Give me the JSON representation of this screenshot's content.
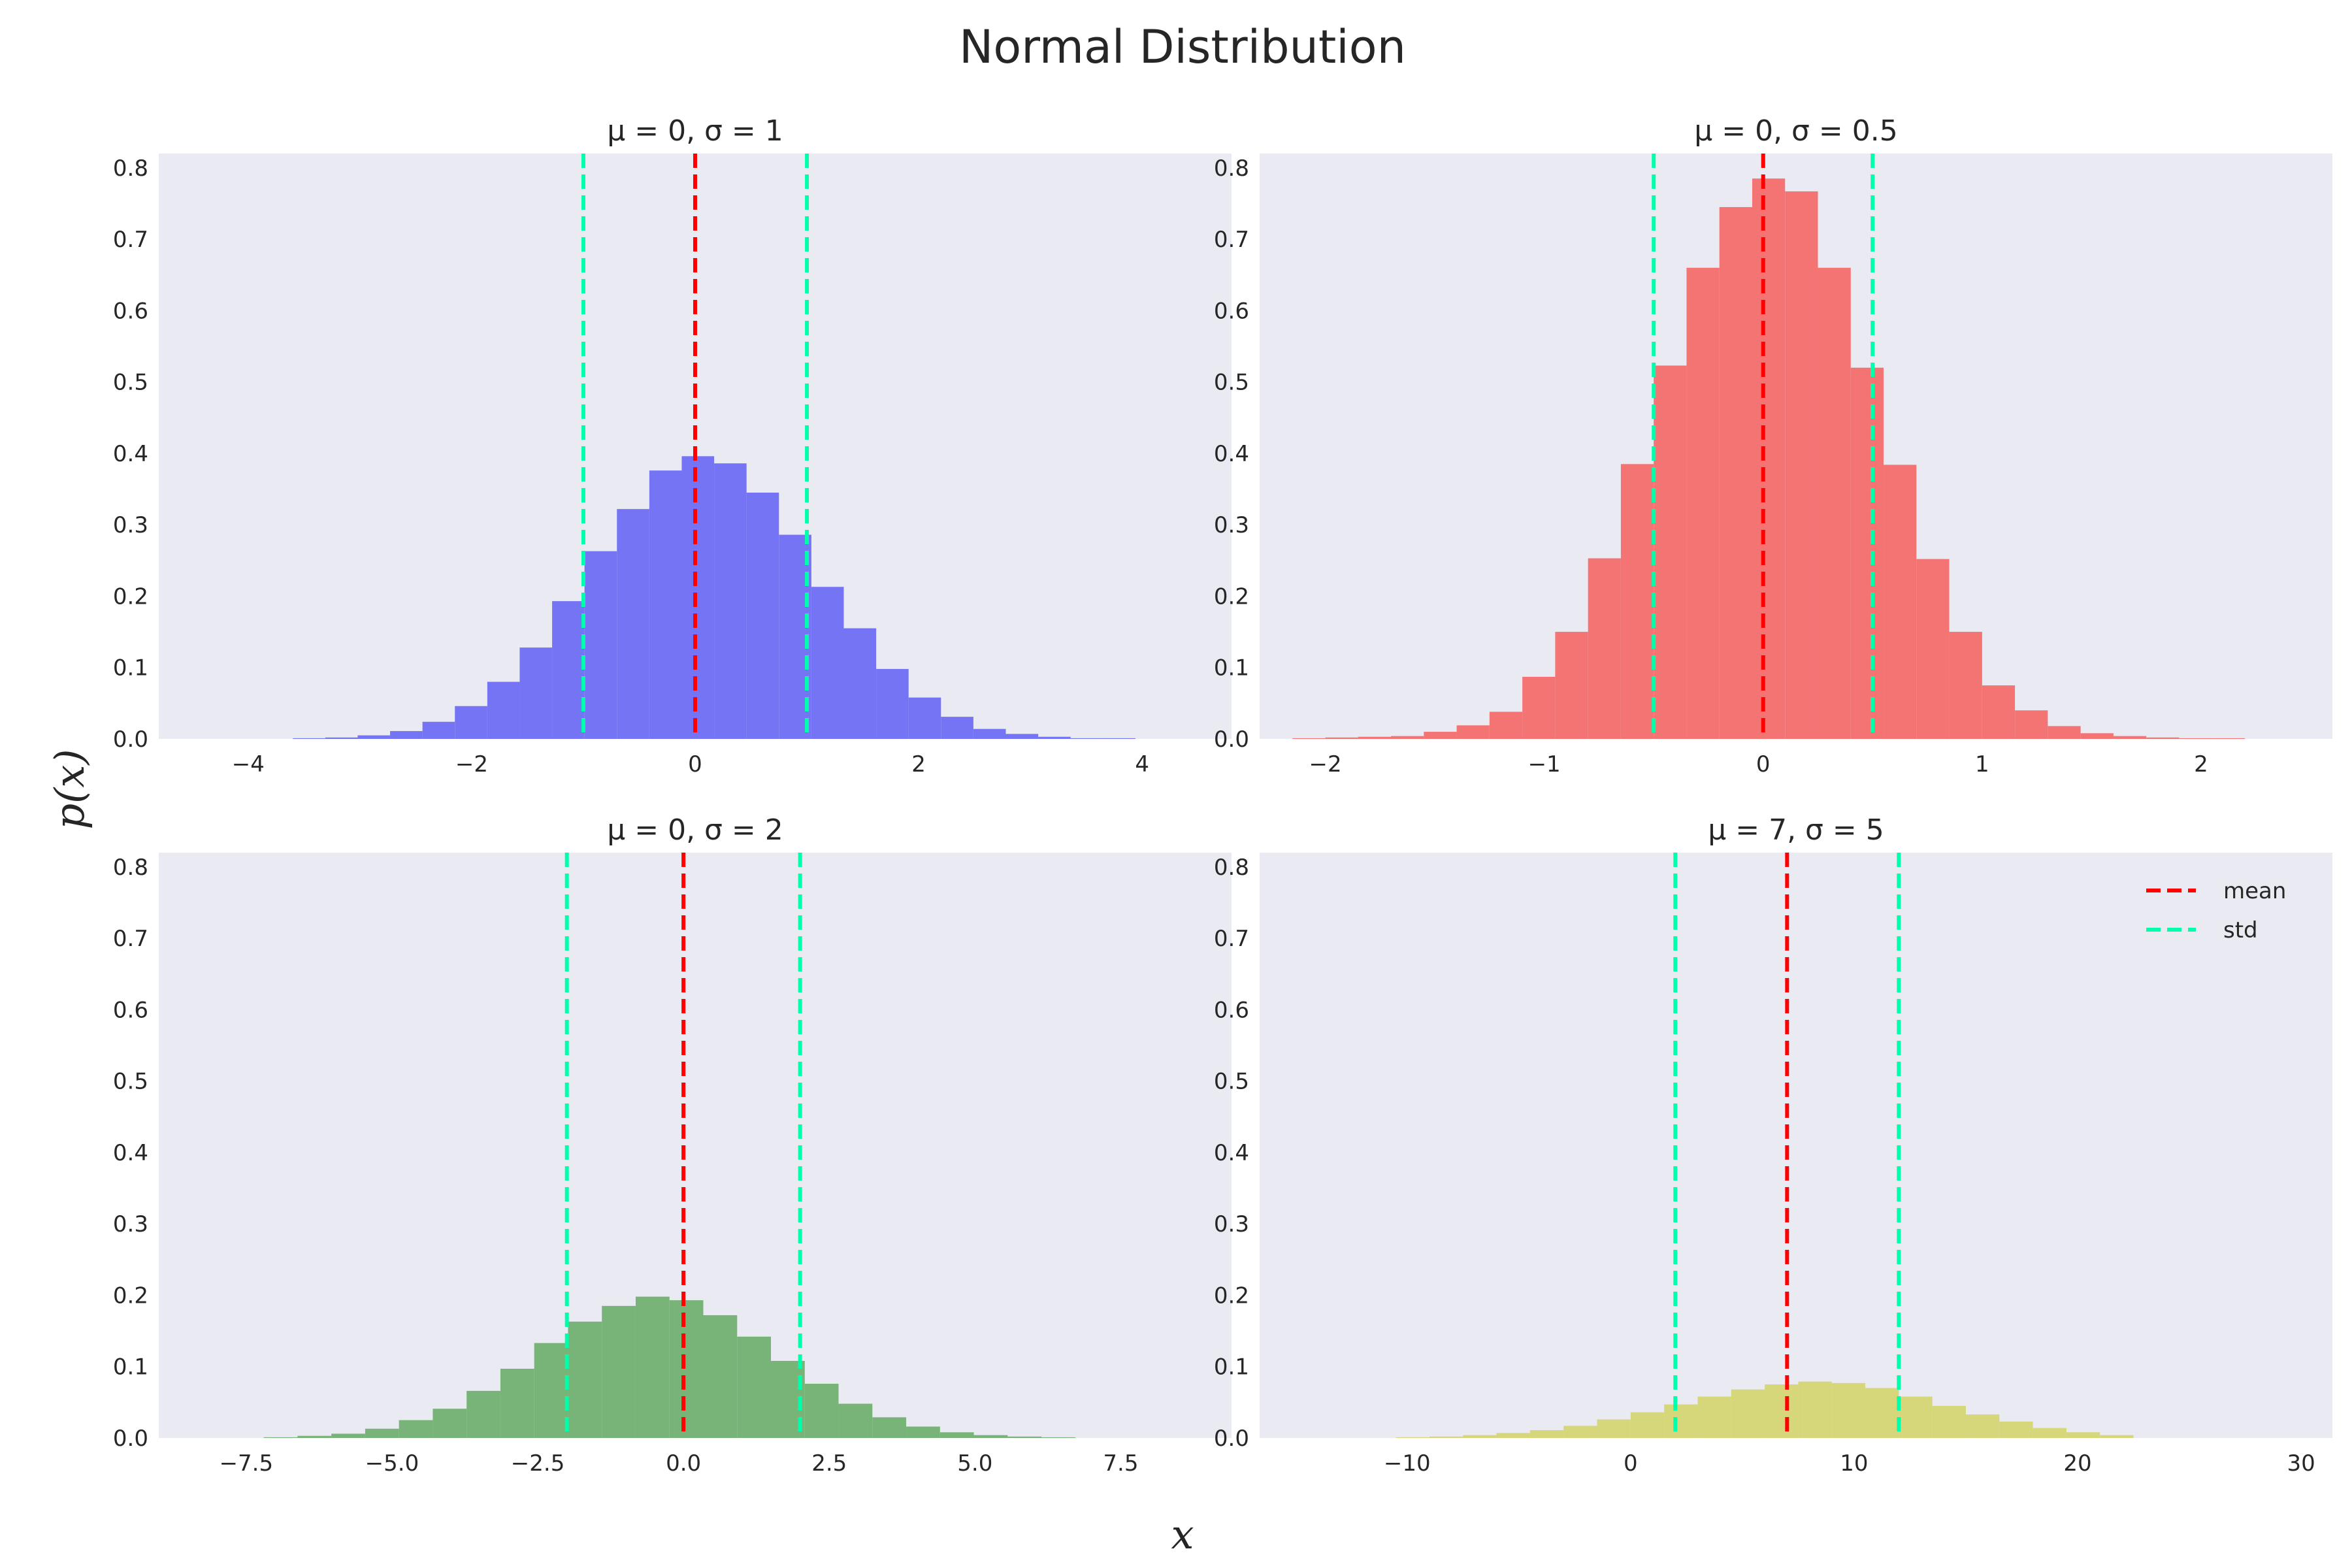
{
  "figure": {
    "title": "Normal Distribution",
    "xlabel": "x",
    "ylabel": "p(x)",
    "colors": {
      "panel_background": "#EAEAF2",
      "mean_line": "#FF0000",
      "std_line": "#00FFAA"
    },
    "legend": {
      "entries": [
        "mean",
        "std"
      ],
      "location": "upper-right",
      "panel": 3
    }
  },
  "chart_data": [
    {
      "type": "bar",
      "subtype": "histogram",
      "title": "μ = 0, σ = 1",
      "mu": 0,
      "sigma": 1,
      "xlim": [
        -4.8,
        4.8
      ],
      "ylim": [
        0,
        0.82
      ],
      "xticks": [
        -4,
        -2,
        0,
        2,
        4
      ],
      "xtick_labels": [
        "−4",
        "−2",
        "0",
        "2",
        "4"
      ],
      "yticks": [
        0,
        0.1,
        0.2,
        0.3,
        0.4,
        0.5,
        0.6,
        0.7,
        0.8
      ],
      "ytick_labels": [
        "0.0",
        "0.1",
        "0.2",
        "0.3",
        "0.4",
        "0.5",
        "0.6",
        "0.7",
        "0.8"
      ],
      "grid": false,
      "bar_color": "#7474F4",
      "bin_edges": [
        -3.6,
        -3.31,
        -3.02,
        -2.73,
        -2.44,
        -2.15,
        -1.86,
        -1.57,
        -1.28,
        -0.99,
        -0.7,
        -0.41,
        -0.12,
        0.17,
        0.46,
        0.75,
        1.04,
        1.33,
        1.62,
        1.91,
        2.2,
        2.49,
        2.78,
        3.07,
        3.36,
        3.65,
        3.94
      ],
      "values": [
        0.001,
        0.002,
        0.005,
        0.011,
        0.024,
        0.046,
        0.08,
        0.128,
        0.193,
        0.263,
        0.322,
        0.376,
        0.396,
        0.386,
        0.345,
        0.286,
        0.213,
        0.155,
        0.098,
        0.058,
        0.031,
        0.014,
        0.007,
        0.003,
        0.001,
        0.001
      ],
      "mean": 0,
      "std_lines": [
        -1,
        1
      ]
    },
    {
      "type": "bar",
      "subtype": "histogram",
      "title": "μ = 0, σ = 0.5",
      "mu": 0,
      "sigma": 0.5,
      "xlim": [
        -2.3,
        2.6
      ],
      "ylim": [
        0,
        0.82
      ],
      "xticks": [
        -2,
        -1,
        0,
        1,
        2
      ],
      "xtick_labels": [
        "−2",
        "−1",
        "0",
        "1",
        "2"
      ],
      "yticks": [
        0,
        0.1,
        0.2,
        0.3,
        0.4,
        0.5,
        0.6,
        0.7,
        0.8
      ],
      "ytick_labels": [
        "0.0",
        "0.1",
        "0.2",
        "0.3",
        "0.4",
        "0.5",
        "0.6",
        "0.7",
        "0.8"
      ],
      "grid": false,
      "bar_color": "#F47474",
      "bin_edges": [
        -2.15,
        -2.0,
        -1.85,
        -1.7,
        -1.55,
        -1.4,
        -1.25,
        -1.1,
        -0.95,
        -0.8,
        -0.65,
        -0.5,
        -0.35,
        -0.2,
        -0.05,
        0.1,
        0.25,
        0.4,
        0.55,
        0.7,
        0.85,
        1.0,
        1.15,
        1.3,
        1.45,
        1.6,
        1.75,
        1.9,
        2.05,
        2.2
      ],
      "values": [
        0.001,
        0.002,
        0.003,
        0.004,
        0.01,
        0.019,
        0.038,
        0.087,
        0.15,
        0.253,
        0.385,
        0.523,
        0.66,
        0.745,
        0.785,
        0.767,
        0.66,
        0.52,
        0.384,
        0.252,
        0.15,
        0.075,
        0.04,
        0.018,
        0.008,
        0.004,
        0.002,
        0.001,
        0.001
      ],
      "mean": 0,
      "std_lines": [
        -0.5,
        0.5
      ]
    },
    {
      "type": "bar",
      "subtype": "histogram",
      "title": "μ = 0, σ = 2",
      "mu": 0,
      "sigma": 2,
      "xlim": [
        -9.0,
        9.4
      ],
      "ylim": [
        0,
        0.82
      ],
      "xticks": [
        -7.5,
        -5,
        -2.5,
        0,
        2.5,
        5,
        7.5
      ],
      "xtick_labels": [
        "−7.5",
        "−5.0",
        "−2.5",
        "0.0",
        "2.5",
        "5.0",
        "7.5"
      ],
      "yticks": [
        0,
        0.1,
        0.2,
        0.3,
        0.4,
        0.5,
        0.6,
        0.7,
        0.8
      ],
      "ytick_labels": [
        "0.0",
        "0.1",
        "0.2",
        "0.3",
        "0.4",
        "0.5",
        "0.6",
        "0.7",
        "0.8"
      ],
      "grid": false,
      "bar_color": "#78B478",
      "bin_edges": [
        -7.2,
        -6.62,
        -6.04,
        -5.46,
        -4.88,
        -4.3,
        -3.72,
        -3.14,
        -2.56,
        -1.98,
        -1.4,
        -0.82,
        -0.24,
        0.34,
        0.92,
        1.5,
        2.08,
        2.66,
        3.24,
        3.82,
        4.4,
        4.98,
        5.56,
        6.14,
        6.72
      ],
      "values": [
        0.001,
        0.003,
        0.006,
        0.013,
        0.025,
        0.041,
        0.066,
        0.097,
        0.133,
        0.163,
        0.185,
        0.198,
        0.193,
        0.172,
        0.142,
        0.108,
        0.076,
        0.048,
        0.029,
        0.016,
        0.008,
        0.004,
        0.002,
        0.001
      ],
      "mean": 0,
      "std_lines": [
        -2,
        2
      ]
    },
    {
      "type": "bar",
      "subtype": "histogram",
      "title": "μ = 7, σ = 5",
      "mu": 7,
      "sigma": 5,
      "xlim": [
        -16.6,
        31.4
      ],
      "ylim": [
        0,
        0.82
      ],
      "xticks": [
        -10,
        0,
        10,
        20,
        30
      ],
      "xtick_labels": [
        "−10",
        "0",
        "10",
        "20",
        "30"
      ],
      "yticks": [
        0,
        0.1,
        0.2,
        0.3,
        0.4,
        0.5,
        0.6,
        0.7,
        0.8
      ],
      "ytick_labels": [
        "0.0",
        "0.1",
        "0.2",
        "0.3",
        "0.4",
        "0.5",
        "0.6",
        "0.7",
        "0.8"
      ],
      "grid": false,
      "bar_color": "#D6D67A",
      "bin_edges": [
        -10.5,
        -9.0,
        -7.5,
        -6.0,
        -4.5,
        -3.0,
        -1.5,
        0.0,
        1.5,
        3.0,
        4.5,
        6.0,
        7.5,
        9.0,
        10.5,
        12.0,
        13.5,
        15.0,
        16.5,
        18.0,
        19.5,
        21.0,
        22.5
      ],
      "values": [
        0.001,
        0.002,
        0.004,
        0.007,
        0.011,
        0.017,
        0.026,
        0.036,
        0.047,
        0.058,
        0.068,
        0.075,
        0.079,
        0.077,
        0.07,
        0.058,
        0.045,
        0.033,
        0.023,
        0.014,
        0.008,
        0.004
      ],
      "mean": 7,
      "std_lines": [
        2,
        12
      ]
    }
  ]
}
